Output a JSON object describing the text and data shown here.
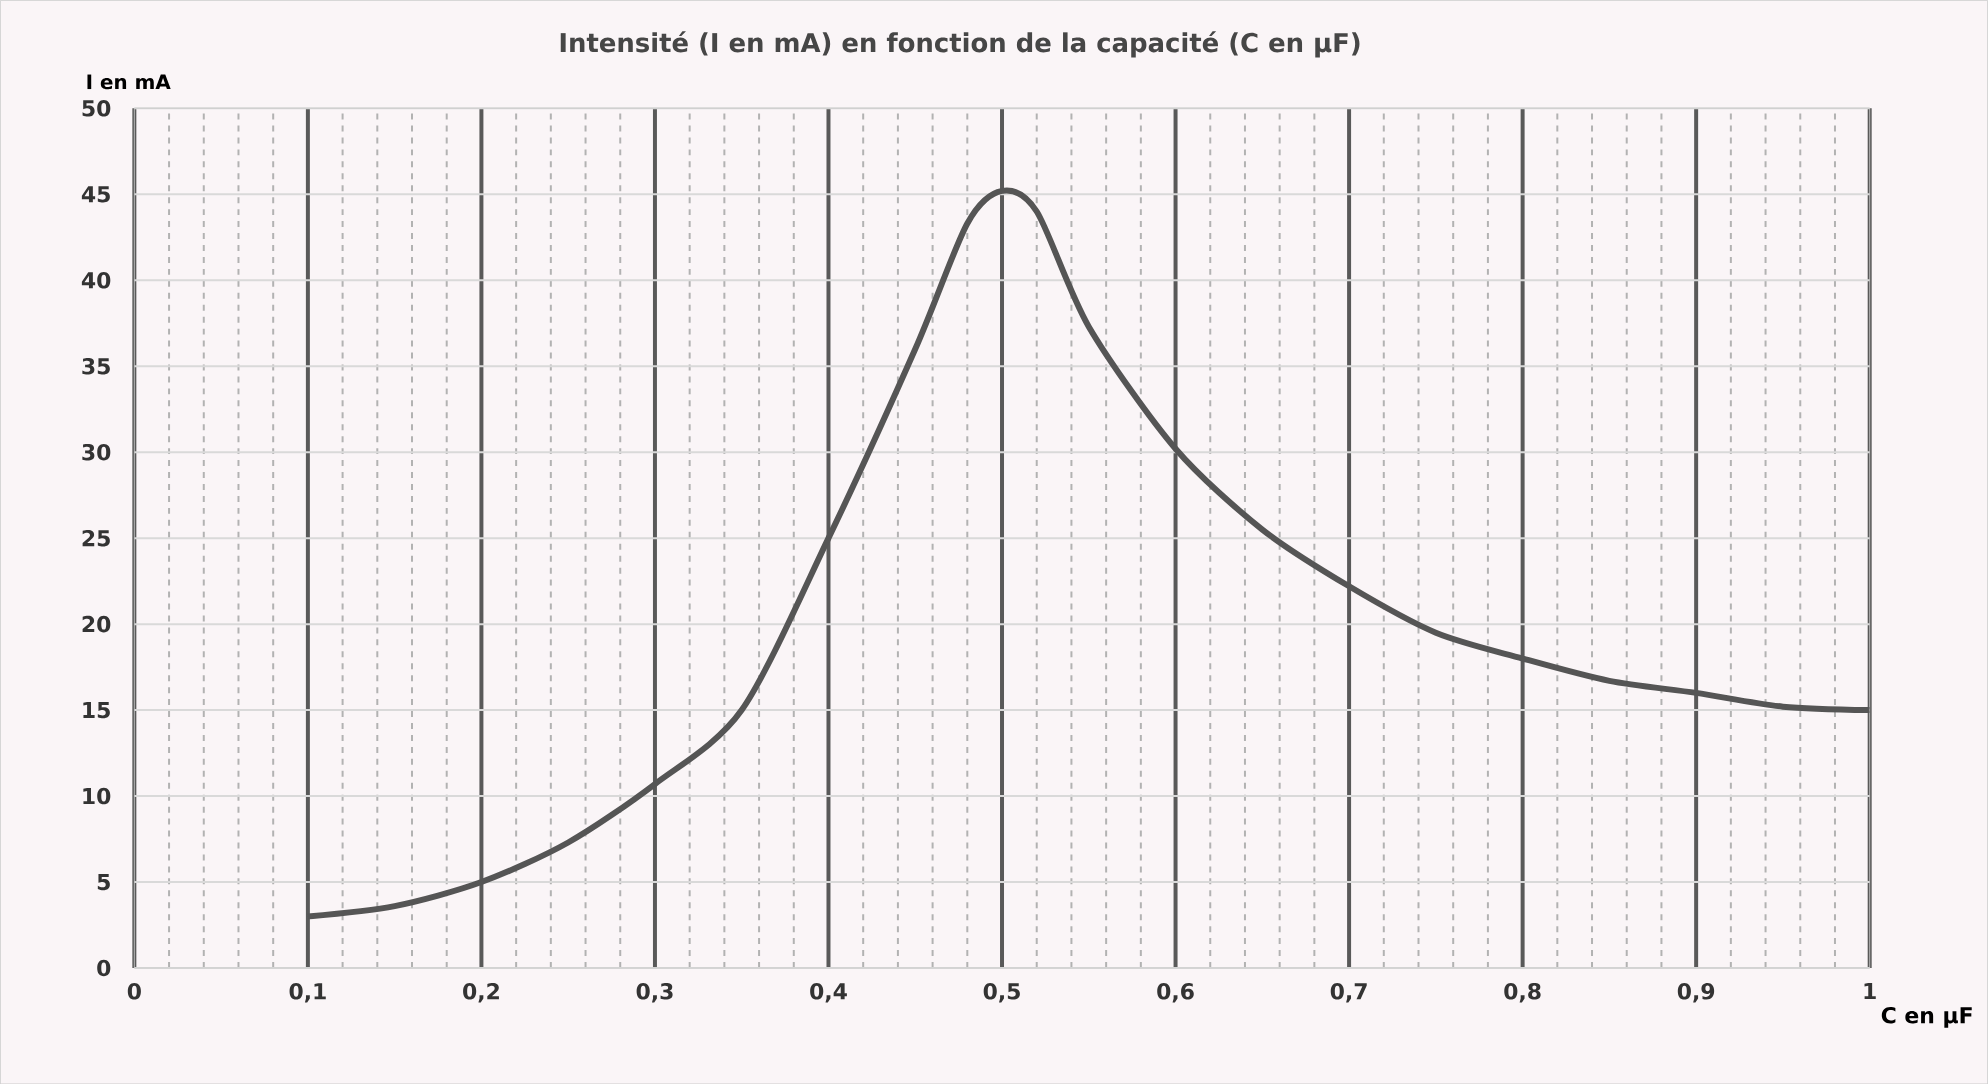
{
  "chart_data": {
    "type": "line",
    "title": "Intensité (I en mA) en fonction de la capacité (C en µF)",
    "xlabel": "C en µF",
    "ylabel": "I en mA",
    "x": [
      0.1,
      0.15,
      0.2,
      0.25,
      0.3,
      0.35,
      0.4,
      0.45,
      0.48,
      0.5,
      0.52,
      0.55,
      0.6,
      0.65,
      0.7,
      0.75,
      0.8,
      0.85,
      0.9,
      0.95,
      1.0
    ],
    "series": [
      {
        "color": "#555555",
        "values": [
          3,
          3.6,
          5,
          7.3,
          10.7,
          15,
          25,
          36,
          43.3,
          45.2,
          44,
          37.3,
          30.2,
          25.5,
          22.2,
          19.5,
          18,
          16.7,
          16,
          15.2,
          15
        ]
      }
    ],
    "xlim": [
      0,
      1
    ],
    "ylim": [
      0,
      50
    ],
    "xticks": [
      0,
      {
        "value": 0.1,
        "label": "0,1"
      },
      {
        "value": 0.2,
        "label": "0,2"
      },
      {
        "value": 0.3,
        "label": "0,3"
      },
      {
        "value": 0.4,
        "label": "0,4"
      },
      {
        "value": 0.5,
        "label": "0,5"
      },
      {
        "value": 0.6,
        "label": "0,6"
      },
      {
        "value": 0.7,
        "label": "0,7"
      },
      {
        "value": 0.8,
        "label": "0,8"
      },
      {
        "value": 0.9,
        "label": "0,9"
      },
      1
    ],
    "yticks": [
      0,
      5,
      10,
      15,
      20,
      25,
      30,
      35,
      40,
      45,
      50
    ],
    "grid": true,
    "marker": "none",
    "line_style": "solid"
  }
}
